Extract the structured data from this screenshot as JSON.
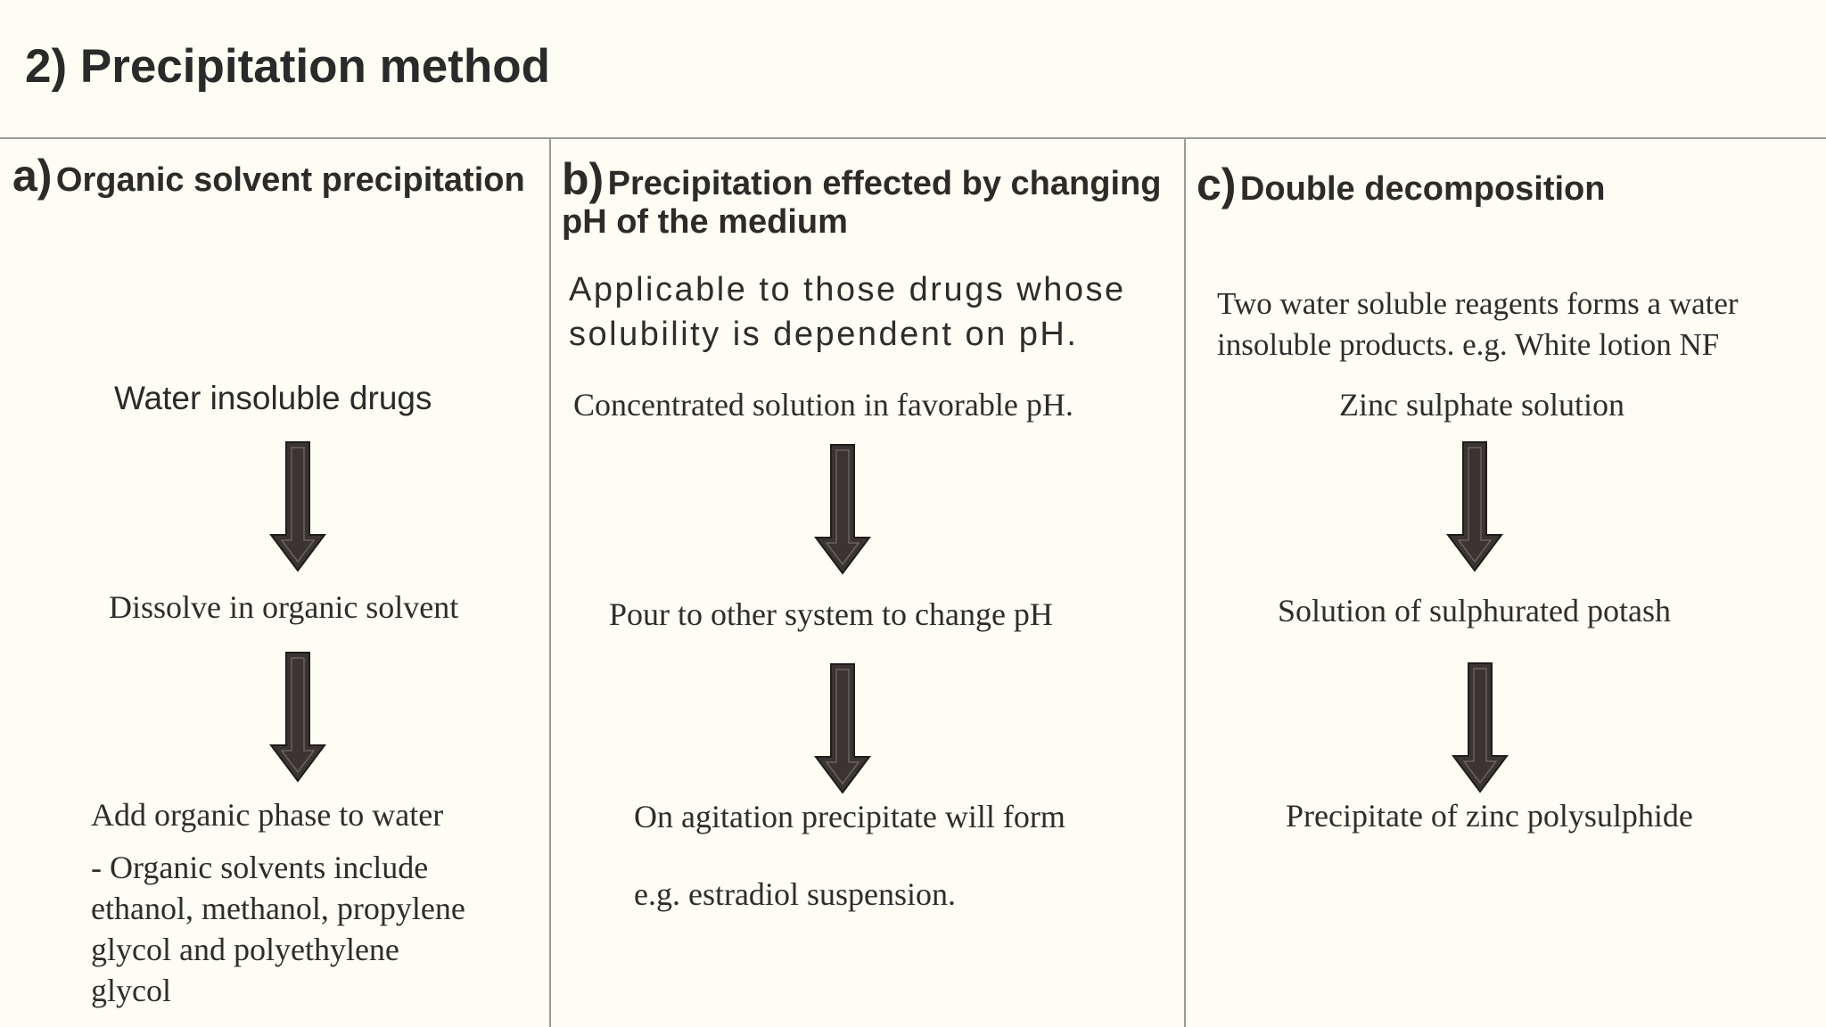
{
  "title": "2) Precipitation method",
  "columns": [
    {
      "letter": "a)",
      "heading": "Organic solvent precipitation",
      "steps": [
        "Water insoluble drugs",
        "Dissolve in organic solvent",
        "Add organic phase  to water"
      ],
      "note": [
        "- Organic solvents include",
        "ethanol, methanol, propylene",
        "glycol and polyethylene",
        "glycol"
      ]
    },
    {
      "letter": "b)",
      "heading_line1": "Precipitation effected by changing",
      "heading_line2": "pH of the medium",
      "intro": [
        "Applicable to those drugs whose",
        "solubility is dependent on pH."
      ],
      "steps": [
        "Concentrated  solution in favorable pH.",
        "Pour to other system to change pH",
        "On agitation precipitate will form"
      ],
      "example": "e.g. estradiol suspension."
    },
    {
      "letter": "c)",
      "heading": "Double decomposition",
      "intro": [
        "Two water soluble reagents forms a water",
        "insoluble products. e.g. White lotion NF"
      ],
      "steps": [
        "Zinc sulphate solution",
        "Solution of sulphurated potash",
        "Precipitate of zinc polysulphide"
      ]
    }
  ],
  "arrow_icon": "down-arrow-icon",
  "colors": {
    "background": "#fefdf3",
    "text": "#2d2b28",
    "arrow_fill": "#3a3532",
    "divider": "#9c9a95"
  }
}
